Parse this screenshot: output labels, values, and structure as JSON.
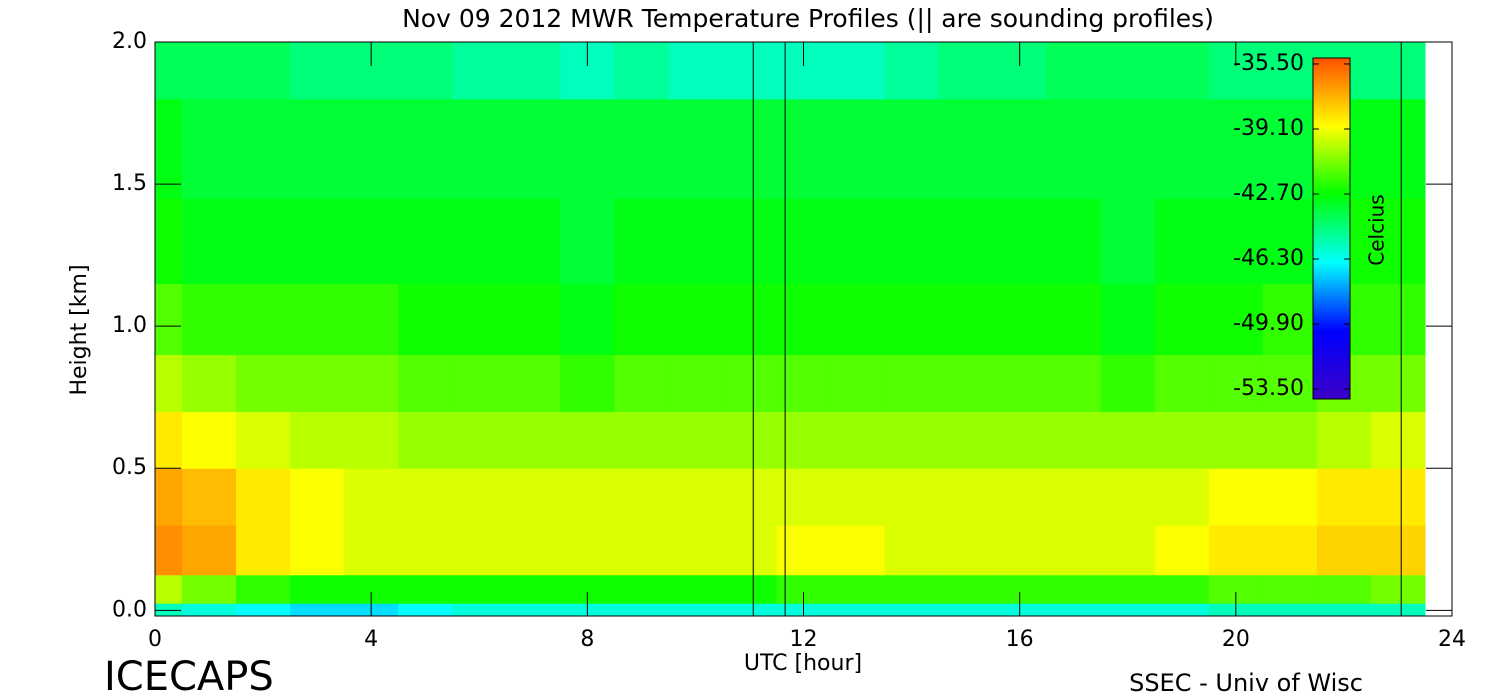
{
  "chart_data": {
    "type": "heatmap",
    "title": "Nov 09 2012 MWR Temperature Profiles (|| are sounding profiles)",
    "xlabel": "UTC [hour]",
    "ylabel": "Height [km]",
    "colorbar_label": "Celcius",
    "footer_left": "ICECAPS",
    "footer_right": "SSEC - Univ of Wisc",
    "xlim": [
      0,
      24
    ],
    "xticks": [
      0,
      4,
      8,
      12,
      16,
      20,
      24
    ],
    "ylim": [
      -0.02,
      2.0
    ],
    "yticks": [
      {
        "value": 0,
        "label": "0.0"
      },
      {
        "value": 0.5,
        "label": "0.5"
      },
      {
        "value": 1,
        "label": "1.0"
      },
      {
        "value": 1.5,
        "label": "1.5"
      },
      {
        "value": 2,
        "label": "2.0"
      }
    ],
    "clim": [
      -54.05,
      -35.17
    ],
    "cticks": [
      {
        "value": -53.5,
        "label": "-53.50"
      },
      {
        "value": -49.9,
        "label": "-49.90"
      },
      {
        "value": -46.3,
        "label": "-46.30"
      },
      {
        "value": -42.7,
        "label": "-42.70"
      },
      {
        "value": -39.1,
        "label": "-39.10"
      },
      {
        "value": -35.5,
        "label": "-35.50"
      }
    ],
    "colormap": [
      "#3c00c8",
      "#0000ff",
      "#00ffff",
      "#00ff00",
      "#ffff00",
      "#ff5000"
    ],
    "sounding_times": [
      11.07,
      11.66,
      23.06
    ],
    "x": [
      0,
      1,
      2,
      3,
      4,
      5,
      6,
      7,
      8,
      9,
      10,
      11,
      12,
      13,
      14,
      15,
      16,
      17,
      18,
      19,
      20,
      21,
      22,
      23
    ],
    "y": [
      0,
      0.05,
      0.2,
      0.4,
      0.6,
      0.8,
      1.0,
      1.3,
      1.6,
      2.0
    ],
    "z": [
      [
        -45.5,
        -46,
        -46.5,
        -47,
        -47,
        -46.5,
        -46,
        -46,
        -46,
        -46,
        -46,
        -46,
        -46,
        -46,
        -46,
        -46,
        -46,
        -46,
        -46,
        -46,
        -45.5,
        -45.5,
        -45.5,
        -45.5
      ],
      [
        -40,
        -41,
        -42,
        -42.5,
        -42.5,
        -42.5,
        -42.5,
        -42.5,
        -42.5,
        -42.5,
        -42.5,
        -42.5,
        -42,
        -42,
        -42,
        -42,
        -42,
        -42,
        -42,
        -42,
        -41.5,
        -41.5,
        -41.5,
        -41
      ],
      [
        -36.5,
        -37,
        -38.5,
        -39,
        -39.5,
        -39.5,
        -39.5,
        -39.5,
        -39.5,
        -39.5,
        -39.5,
        -39.5,
        -39,
        -39,
        -39.5,
        -39.5,
        -39.5,
        -39.5,
        -39.5,
        -39,
        -38.5,
        -38.5,
        -38,
        -38
      ],
      [
        -37,
        -37.5,
        -38.5,
        -39,
        -39.5,
        -39.5,
        -39.5,
        -39.5,
        -39.5,
        -39.5,
        -39.5,
        -39.5,
        -39.5,
        -39.5,
        -39.5,
        -39.5,
        -39.5,
        -39.5,
        -39.5,
        -39.5,
        -39,
        -39,
        -38.5,
        -38.5
      ],
      [
        -38.5,
        -39,
        -39.5,
        -40,
        -40,
        -40.5,
        -40.5,
        -40.5,
        -40.5,
        -40.5,
        -40.5,
        -40.5,
        -40.5,
        -40.5,
        -40.5,
        -40.5,
        -40.5,
        -40.5,
        -40.5,
        -40.5,
        -40.5,
        -40.5,
        -40,
        -39.5
      ],
      [
        -40,
        -40.5,
        -41,
        -41,
        -41,
        -41.5,
        -41.5,
        -41.5,
        -42,
        -41.5,
        -41.5,
        -41.5,
        -41.5,
        -41.5,
        -41.5,
        -41.5,
        -41.5,
        -41.5,
        -42,
        -41.5,
        -41.5,
        -41.5,
        -41,
        -41
      ],
      [
        -41.5,
        -42,
        -42,
        -42,
        -42,
        -42.5,
        -42.5,
        -42.5,
        -43,
        -42.5,
        -42.5,
        -42.5,
        -42.5,
        -42.5,
        -42.5,
        -42.5,
        -42.5,
        -42.5,
        -43,
        -42.5,
        -42.5,
        -42,
        -42,
        -42
      ],
      [
        -42.5,
        -43,
        -43,
        -43,
        -43,
        -43,
        -43,
        -43,
        -43.5,
        -43,
        -43,
        -43,
        -43,
        -43,
        -43,
        -43,
        -43,
        -43,
        -43.5,
        -43,
        -43,
        -43,
        -42.5,
        -42.5
      ],
      [
        -43,
        -43.5,
        -43.5,
        -43.5,
        -43.5,
        -43.5,
        -43.5,
        -43.5,
        -43.5,
        -43.5,
        -43.5,
        -43.5,
        -43.5,
        -43.5,
        -43.5,
        -43.5,
        -43.5,
        -43.5,
        -43.5,
        -43.5,
        -43.5,
        -43.5,
        -43,
        -43
      ],
      [
        -44,
        -44,
        -44,
        -44.5,
        -44.5,
        -44.5,
        -45,
        -45,
        -45.5,
        -45,
        -45.5,
        -45.5,
        -45.5,
        -45.5,
        -45,
        -44.5,
        -44.5,
        -44,
        -44,
        -44,
        -44.5,
        -44.5,
        -44.5,
        -44.5
      ]
    ]
  }
}
